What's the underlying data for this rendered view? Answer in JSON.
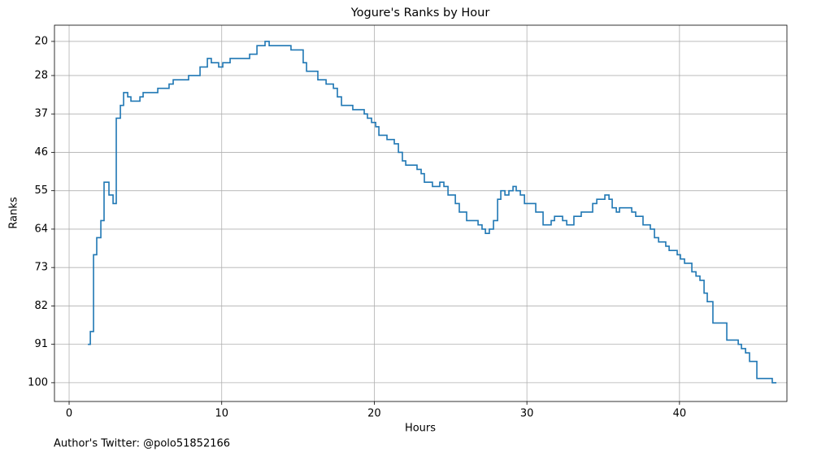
{
  "chart_data": {
    "type": "step",
    "step": "post",
    "title": "Yogure's Ranks by Hour",
    "xlabel": "Hours",
    "ylabel": "Ranks",
    "footnote": "Author's Twitter: @polo51852166",
    "series": [
      {
        "name": "Ranks",
        "color": "#1f77b4",
        "x": [
          1.23,
          1.39,
          1.6,
          1.81,
          2.08,
          2.29,
          2.61,
          2.88,
          3.09,
          3.36,
          3.57,
          3.84,
          4.05,
          4.64,
          4.85,
          5.81,
          6.55,
          6.82,
          7.83,
          8.58,
          9.06,
          9.32,
          9.8,
          10.07,
          10.55,
          11.83,
          12.31,
          12.84,
          13.11,
          14.54,
          15.34,
          15.56,
          16.3,
          16.84,
          17.32,
          17.58,
          17.85,
          18.59,
          19.34,
          19.55,
          19.82,
          20.09,
          20.3,
          20.83,
          21.31,
          21.58,
          21.84,
          22.06,
          22.8,
          23.07,
          23.28,
          23.81,
          24.29,
          24.56,
          24.83,
          25.31,
          25.57,
          26.05,
          26.8,
          27.06,
          27.28,
          27.54,
          27.81,
          28.08,
          28.29,
          28.56,
          28.82,
          29.09,
          29.3,
          29.57,
          29.84,
          30.58,
          31.06,
          31.59,
          31.81,
          32.34,
          32.61,
          33.08,
          33.56,
          34.31,
          34.58,
          35.11,
          35.38,
          35.59,
          35.86,
          36.07,
          36.87,
          37.13,
          37.61,
          38.09,
          38.36,
          38.63,
          39.1,
          39.32,
          39.85,
          40.06,
          40.33,
          40.81,
          41.08,
          41.34,
          41.61,
          41.82,
          42.19,
          43.1,
          43.85,
          44.06,
          44.33,
          44.59,
          45.07,
          46.08,
          46.35
        ],
        "values": [
          91,
          88,
          70,
          66,
          62,
          53,
          56,
          58,
          38,
          35,
          32,
          33,
          34,
          33,
          32,
          31,
          30,
          29,
          28,
          26,
          24,
          25,
          26,
          25,
          24,
          23,
          21,
          20,
          21,
          22,
          25,
          27,
          29,
          30,
          31,
          33,
          35,
          36,
          37,
          38,
          39,
          40,
          42,
          43,
          44,
          46,
          48,
          49,
          50,
          51,
          53,
          54,
          53,
          54,
          56,
          58,
          60,
          62,
          63,
          64,
          65,
          64,
          62,
          57,
          55,
          56,
          55,
          54,
          55,
          56,
          58,
          60,
          63,
          62,
          61,
          62,
          63,
          61,
          60,
          58,
          57,
          56,
          57,
          59,
          60,
          59,
          60,
          61,
          63,
          64,
          66,
          67,
          68,
          69,
          70,
          71,
          72,
          74,
          75,
          76,
          79,
          81,
          86,
          90,
          91,
          92,
          93,
          95,
          99,
          100,
          100
        ]
      }
    ],
    "xlim": [
      -0.96,
      47.04
    ],
    "xticks": [
      0,
      10,
      20,
      30,
      40
    ],
    "ylim": [
      104.4,
      16.2
    ],
    "yticks": [
      20,
      28,
      37,
      46,
      55,
      64,
      73,
      82,
      91,
      100
    ],
    "grid": true
  }
}
